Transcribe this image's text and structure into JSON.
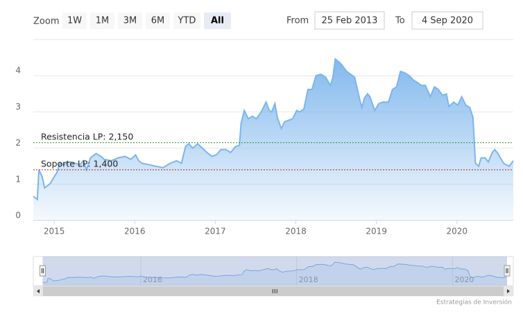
{
  "range_selector": {
    "zoom_label": "Zoom",
    "buttons": [
      "1W",
      "1M",
      "3M",
      "6M",
      "YTD",
      "All"
    ],
    "selected_button": 5,
    "from_label": "From",
    "from": "25 Feb 2013",
    "to_label": "To",
    "to": "4 Sep 2020"
  },
  "chart_data": {
    "type": "area",
    "color": "#7cb5ec",
    "x": [
      2014.74,
      2014.79,
      2014.81,
      2014.85,
      2014.88,
      2014.95,
      2015.0,
      2015.03,
      2015.07,
      2015.12,
      2015.19,
      2015.26,
      2015.32,
      2015.36,
      2015.4,
      2015.45,
      2015.52,
      2015.58,
      2015.62,
      2015.71,
      2015.79,
      2015.88,
      2015.95,
      2016.01,
      2016.05,
      2016.09,
      2016.18,
      2016.26,
      2016.35,
      2016.44,
      2016.52,
      2016.58,
      2016.63,
      2016.67,
      2016.72,
      2016.78,
      2016.84,
      2016.91,
      2016.96,
      2017.01,
      2017.07,
      2017.13,
      2017.19,
      2017.25,
      2017.3,
      2017.32,
      2017.36,
      2017.41,
      2017.46,
      2017.51,
      2017.57,
      2017.63,
      2017.67,
      2017.7,
      2017.74,
      2017.77,
      2017.82,
      2017.86,
      2017.91,
      2017.96,
      2018.01,
      2018.05,
      2018.1,
      2018.15,
      2018.2,
      2018.25,
      2018.31,
      2018.37,
      2018.43,
      2018.46,
      2018.49,
      2018.55,
      2018.58,
      2018.63,
      2018.68,
      2018.73,
      2018.79,
      2018.82,
      2018.85,
      2018.89,
      2018.92,
      2018.98,
      2019.03,
      2019.08,
      2019.15,
      2019.2,
      2019.25,
      2019.3,
      2019.35,
      2019.41,
      2019.46,
      2019.51,
      2019.56,
      2019.61,
      2019.67,
      2019.72,
      2019.77,
      2019.82,
      2019.87,
      2019.9,
      2019.96,
      2020.01,
      2020.06,
      2020.11,
      2020.16,
      2020.2,
      2020.23,
      2020.27,
      2020.3,
      2020.35,
      2020.39,
      2020.44,
      2020.47,
      2020.51,
      2020.54,
      2020.58,
      2020.61,
      2020.65,
      2020.7
    ],
    "values": [
      0.67,
      0.58,
      1.4,
      1.21,
      0.9,
      1.02,
      1.21,
      1.31,
      1.58,
      1.54,
      1.62,
      1.58,
      1.54,
      1.65,
      1.4,
      1.73,
      1.85,
      1.77,
      1.69,
      1.65,
      1.73,
      1.77,
      1.69,
      1.81,
      1.65,
      1.58,
      1.54,
      1.5,
      1.46,
      1.58,
      1.65,
      1.58,
      2.04,
      2.12,
      2.0,
      2.12,
      2.0,
      1.85,
      1.77,
      1.81,
      1.96,
      1.96,
      1.88,
      2.04,
      2.08,
      2.69,
      3.04,
      2.81,
      2.88,
      2.81,
      3.0,
      3.27,
      3.04,
      3.0,
      3.23,
      2.85,
      2.54,
      2.73,
      2.77,
      2.81,
      3.04,
      3.0,
      3.08,
      3.62,
      3.62,
      4.0,
      4.04,
      3.96,
      3.73,
      3.96,
      4.46,
      4.35,
      4.27,
      4.12,
      4.04,
      3.96,
      3.38,
      3.12,
      3.38,
      3.5,
      3.42,
      3.04,
      3.23,
      3.27,
      3.27,
      3.62,
      3.69,
      4.12,
      4.08,
      4.0,
      3.88,
      3.81,
      3.73,
      3.73,
      3.42,
      3.69,
      3.62,
      3.46,
      3.5,
      3.15,
      3.27,
      3.19,
      3.42,
      3.19,
      3.12,
      2.85,
      1.58,
      1.5,
      1.73,
      1.73,
      1.62,
      1.88,
      1.96,
      1.85,
      1.73,
      1.58,
      1.54,
      1.5,
      1.65
    ],
    "xlim": [
      2014.74,
      2020.7
    ],
    "xticks": [
      2015,
      2016,
      2017,
      2018,
      2019,
      2020
    ],
    "ylim": [
      0,
      5
    ],
    "yticks": [
      0,
      1,
      2,
      3,
      4
    ],
    "grid": true,
    "plot_lines": [
      {
        "value": 2.15,
        "label": "Resistencia LP: 2,150",
        "color": "#2e8b2e"
      },
      {
        "value": 1.4,
        "label": "Soporte LP: 1,400",
        "color": "#b22222"
      }
    ],
    "navigator": {
      "xlim": [
        2014.62,
        2020.78
      ],
      "xticks": [
        2016,
        2018,
        2020
      ]
    }
  },
  "credits": "Estrategias de Inversión"
}
